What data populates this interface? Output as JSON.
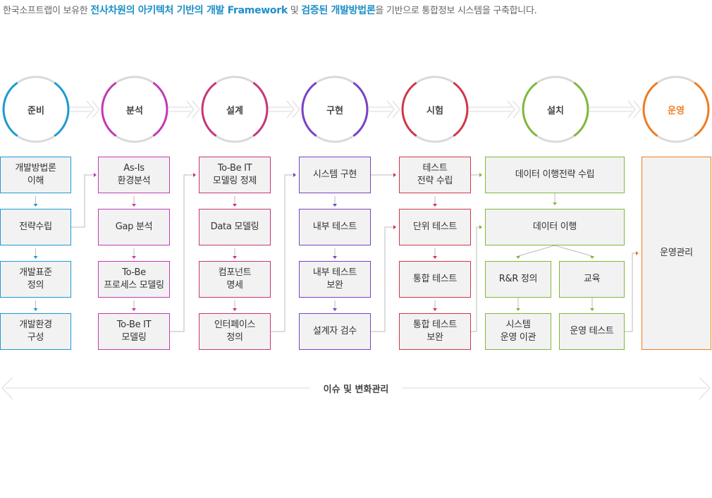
{
  "intro": {
    "part1": "한국소프트랩이 보유한 ",
    "hl1": "전사차원의 아키텍처 기반의 개발 Framework",
    "part2": " 및 ",
    "hl2": "검증된 개발방법론",
    "part3": "을 기반으로 통합정보 시스템을 구축합니다."
  },
  "colors": {
    "prep": "#1f9ad3",
    "analysis": "#c33ab3",
    "design": "#c7367a",
    "impl": "#7a42c4",
    "test": "#d1374a",
    "install": "#7fb83b",
    "ops": "#ef7d22",
    "ring": "#d9d9d9",
    "line": "#bbbbbb"
  },
  "stages": [
    {
      "label": "준비",
      "color_key": "prep"
    },
    {
      "label": "분석",
      "color_key": "analysis"
    },
    {
      "label": "설계",
      "color_key": "design"
    },
    {
      "label": "구현",
      "color_key": "impl"
    },
    {
      "label": "시험",
      "color_key": "test"
    },
    {
      "label": "설치",
      "color_key": "install"
    },
    {
      "label": "운영",
      "color_key": "ops"
    }
  ],
  "prep": [
    "개발방법론\n이해",
    "전략수립",
    "개발표준\n정의",
    "개발환경\n구성"
  ],
  "analysis": [
    "As-Is\n환경분석",
    "Gap 분석",
    "To-Be\n프로세스 모델링",
    "To-Be IT\n모델링"
  ],
  "design": [
    "To-Be IT\n모델링 정제",
    "Data 모델링",
    "컴포넌트\n명세",
    "인터페이스\n정의"
  ],
  "impl": [
    "시스템 구현",
    "내부 테스트",
    "내부 테스트\n보완",
    "설계자 검수"
  ],
  "test": [
    "테스트\n전략 수립",
    "단위 테스트",
    "통합 테스트",
    "통합 테스트\n보완"
  ],
  "install": {
    "migration_plan": "데이터 이행전략 수립",
    "migration": "데이터 이행",
    "rnr": "R&R 정의",
    "edu": "교육",
    "handover": "시스템\n운영 이관",
    "ops_test": "운영 테스트"
  },
  "ops": {
    "management": "운영관리"
  },
  "footer": {
    "label": "이슈 및 변화관리"
  }
}
